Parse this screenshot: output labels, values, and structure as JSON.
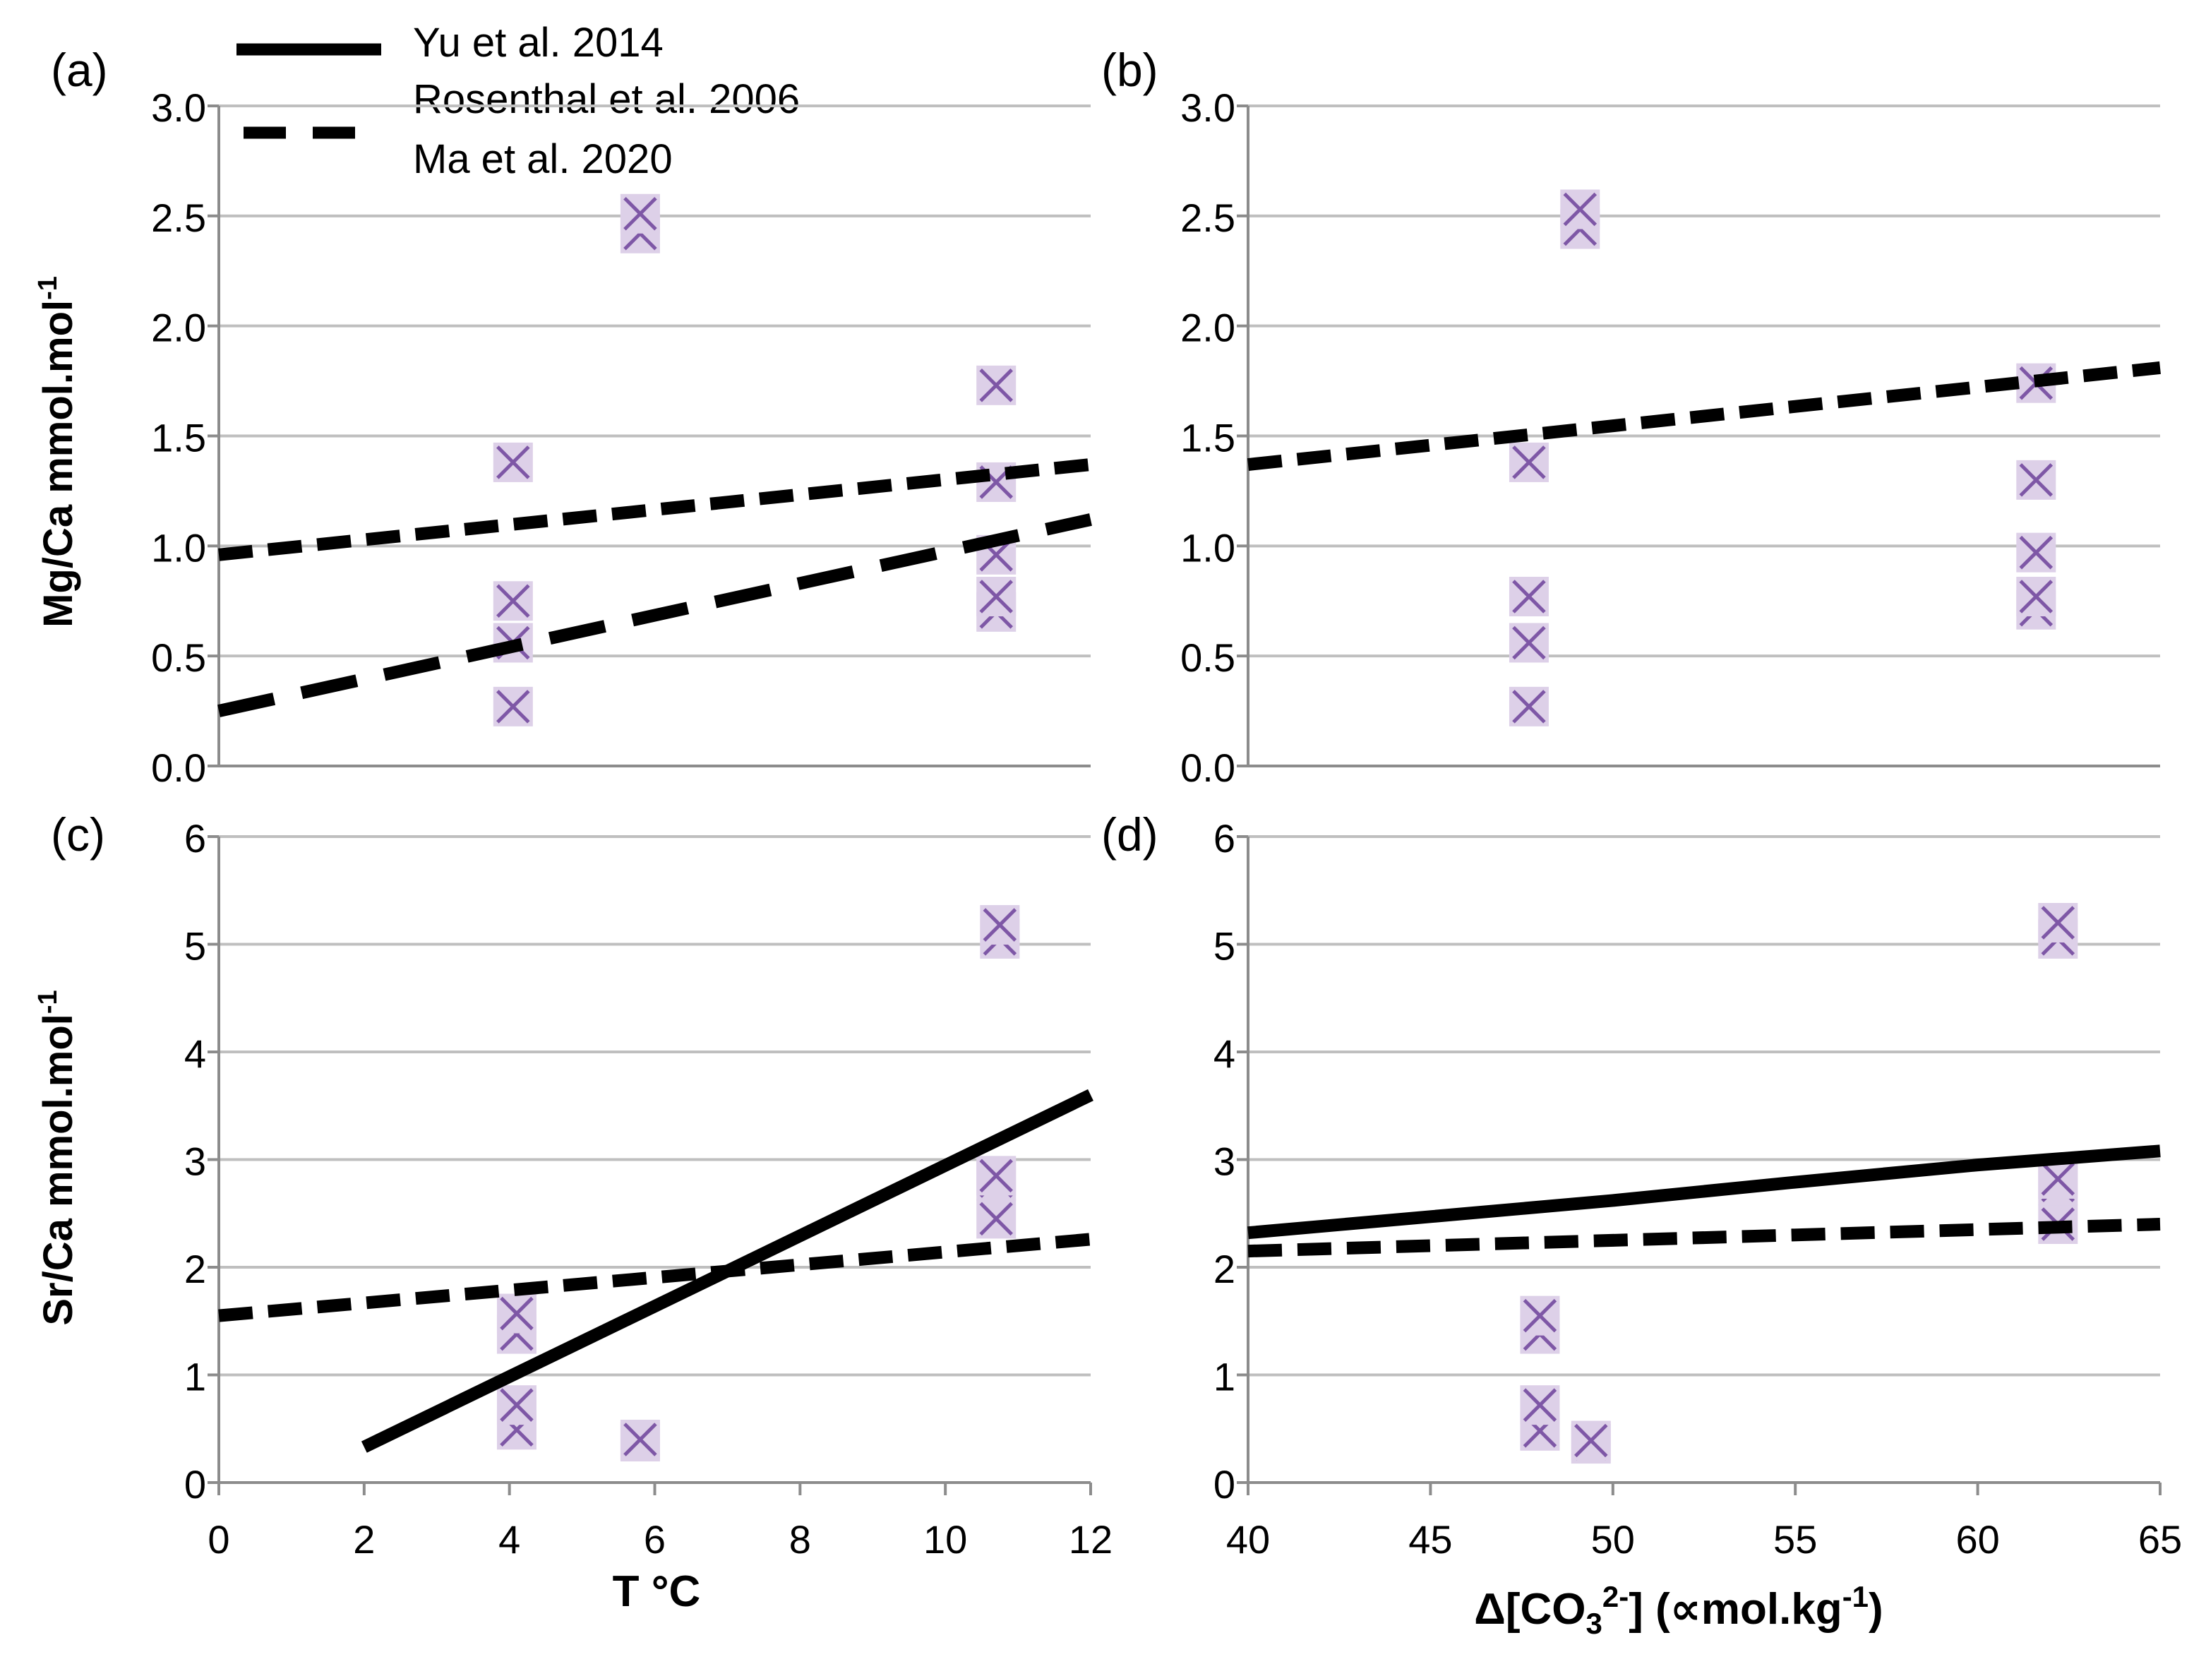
{
  "figure": {
    "legend": [
      {
        "label": "Yu et al. 2014",
        "style": "solid"
      },
      {
        "label": "Rosenthal et al. 2006",
        "style": "dashed-long"
      },
      {
        "label": "Ma et al. 2020",
        "style": "dashed-short"
      }
    ],
    "units": {
      "mg_label": "Mg/Ca mmol.mol",
      "sr_label": "Sr/Ca mmol.mol",
      "minus_one": "-1",
      "t_label": "T °C",
      "co3_prefix": "Δ[CO",
      "co3_sub": "3",
      "co3_sup": "2-",
      "co3_mid": "] (∝mol.kg",
      "co3_end": ")"
    }
  },
  "colors": {
    "marker_fill": "#ddd0e8",
    "marker_stroke": "#7e57a6",
    "grid": "#bfbfbf",
    "axis": "#8c8c8c"
  },
  "chart_data": [
    {
      "panel": "(a)",
      "type": "scatter",
      "xlim": [
        0,
        12
      ],
      "ylim": [
        0,
        3
      ],
      "yticks": [
        "0.0",
        "0.5",
        "1.0",
        "1.5",
        "2.0",
        "2.5",
        "3.0"
      ],
      "xticks": [],
      "ylabel": "mg",
      "xlabel": "",
      "points": [
        [
          4.05,
          0.27
        ],
        [
          4.05,
          0.56
        ],
        [
          4.05,
          0.75
        ],
        [
          4.05,
          1.38
        ],
        [
          5.8,
          2.42
        ],
        [
          5.8,
          2.51
        ],
        [
          10.7,
          0.7
        ],
        [
          10.7,
          0.77
        ],
        [
          10.7,
          0.96
        ],
        [
          10.7,
          1.29
        ],
        [
          10.7,
          1.73
        ]
      ],
      "lines": [
        {
          "name": "Ma et al. 2020",
          "style": "dashed-short",
          "x": [
            0,
            12
          ],
          "y": [
            0.96,
            1.37
          ]
        },
        {
          "name": "Rosenthal et al. 2006",
          "style": "dashed-long",
          "x": [
            0,
            12
          ],
          "y": [
            0.25,
            1.12
          ]
        }
      ]
    },
    {
      "panel": "(b)",
      "type": "scatter",
      "xlim": [
        40,
        65
      ],
      "ylim": [
        0,
        3
      ],
      "yticks": [
        "0.0",
        "0.5",
        "1.0",
        "1.5",
        "2.0",
        "2.5",
        "3.0"
      ],
      "xticks": [],
      "ylabel": "",
      "xlabel": "",
      "points": [
        [
          47.7,
          0.27
        ],
        [
          47.7,
          0.56
        ],
        [
          47.7,
          0.77
        ],
        [
          47.7,
          1.38
        ],
        [
          49.1,
          2.44
        ],
        [
          49.1,
          2.53
        ],
        [
          61.6,
          0.71
        ],
        [
          61.6,
          0.77
        ],
        [
          61.6,
          0.97
        ],
        [
          61.6,
          1.3
        ],
        [
          61.6,
          1.74
        ]
      ],
      "lines": [
        {
          "name": "Ma et al. 2020",
          "style": "dashed-short",
          "x": [
            40,
            65
          ],
          "y": [
            1.37,
            1.81
          ]
        }
      ]
    },
    {
      "panel": "(c)",
      "type": "scatter",
      "xlim": [
        0,
        12
      ],
      "ylim": [
        0,
        6
      ],
      "yticks": [
        "0",
        "1",
        "2",
        "3",
        "4",
        "5",
        "6"
      ],
      "xticks": [
        "0",
        "2",
        "4",
        "6",
        "8",
        "10",
        "12"
      ],
      "ylabel": "sr",
      "xlabel": "t",
      "points": [
        [
          4.1,
          0.49
        ],
        [
          4.1,
          0.72
        ],
        [
          4.1,
          1.38
        ],
        [
          4.1,
          1.57
        ],
        [
          5.8,
          0.38
        ],
        [
          5.8,
          0.4
        ],
        [
          10.7,
          2.45
        ],
        [
          10.7,
          2.8
        ],
        [
          10.7,
          2.85
        ],
        [
          10.75,
          5.05
        ],
        [
          10.75,
          5.18
        ]
      ],
      "lines": [
        {
          "name": "Yu et al. 2014",
          "style": "solid",
          "x": [
            2,
            12
          ],
          "y": [
            0.33,
            3.6
          ]
        },
        {
          "name": "Ma et al. 2020",
          "style": "dashed-short",
          "x": [
            0,
            12
          ],
          "y": [
            1.55,
            2.26
          ]
        }
      ]
    },
    {
      "panel": "(d)",
      "type": "scatter",
      "xlim": [
        40,
        65
      ],
      "ylim": [
        0,
        6
      ],
      "yticks": [
        "0",
        "1",
        "2",
        "3",
        "4",
        "5",
        "6"
      ],
      "xticks": [
        "40",
        "45",
        "50",
        "55",
        "60",
        "65"
      ],
      "ylabel": "",
      "xlabel": "co3",
      "points": [
        [
          48.0,
          0.48
        ],
        [
          48.0,
          0.72
        ],
        [
          48.0,
          1.38
        ],
        [
          48.0,
          1.55
        ],
        [
          49.4,
          0.36
        ],
        [
          49.4,
          0.39
        ],
        [
          62.2,
          2.4
        ],
        [
          62.2,
          2.76
        ],
        [
          62.2,
          2.82
        ],
        [
          62.2,
          5.05
        ],
        [
          62.2,
          5.2
        ]
      ],
      "lines": [
        {
          "name": "Yu et al. 2014",
          "style": "solid",
          "x": [
            40,
            45,
            50,
            55,
            60,
            65
          ],
          "y": [
            2.32,
            2.47,
            2.62,
            2.79,
            2.95,
            3.08
          ]
        },
        {
          "name": "Ma et al. 2020",
          "style": "dashed-short",
          "x": [
            40,
            65
          ],
          "y": [
            2.15,
            2.4
          ]
        }
      ]
    }
  ]
}
